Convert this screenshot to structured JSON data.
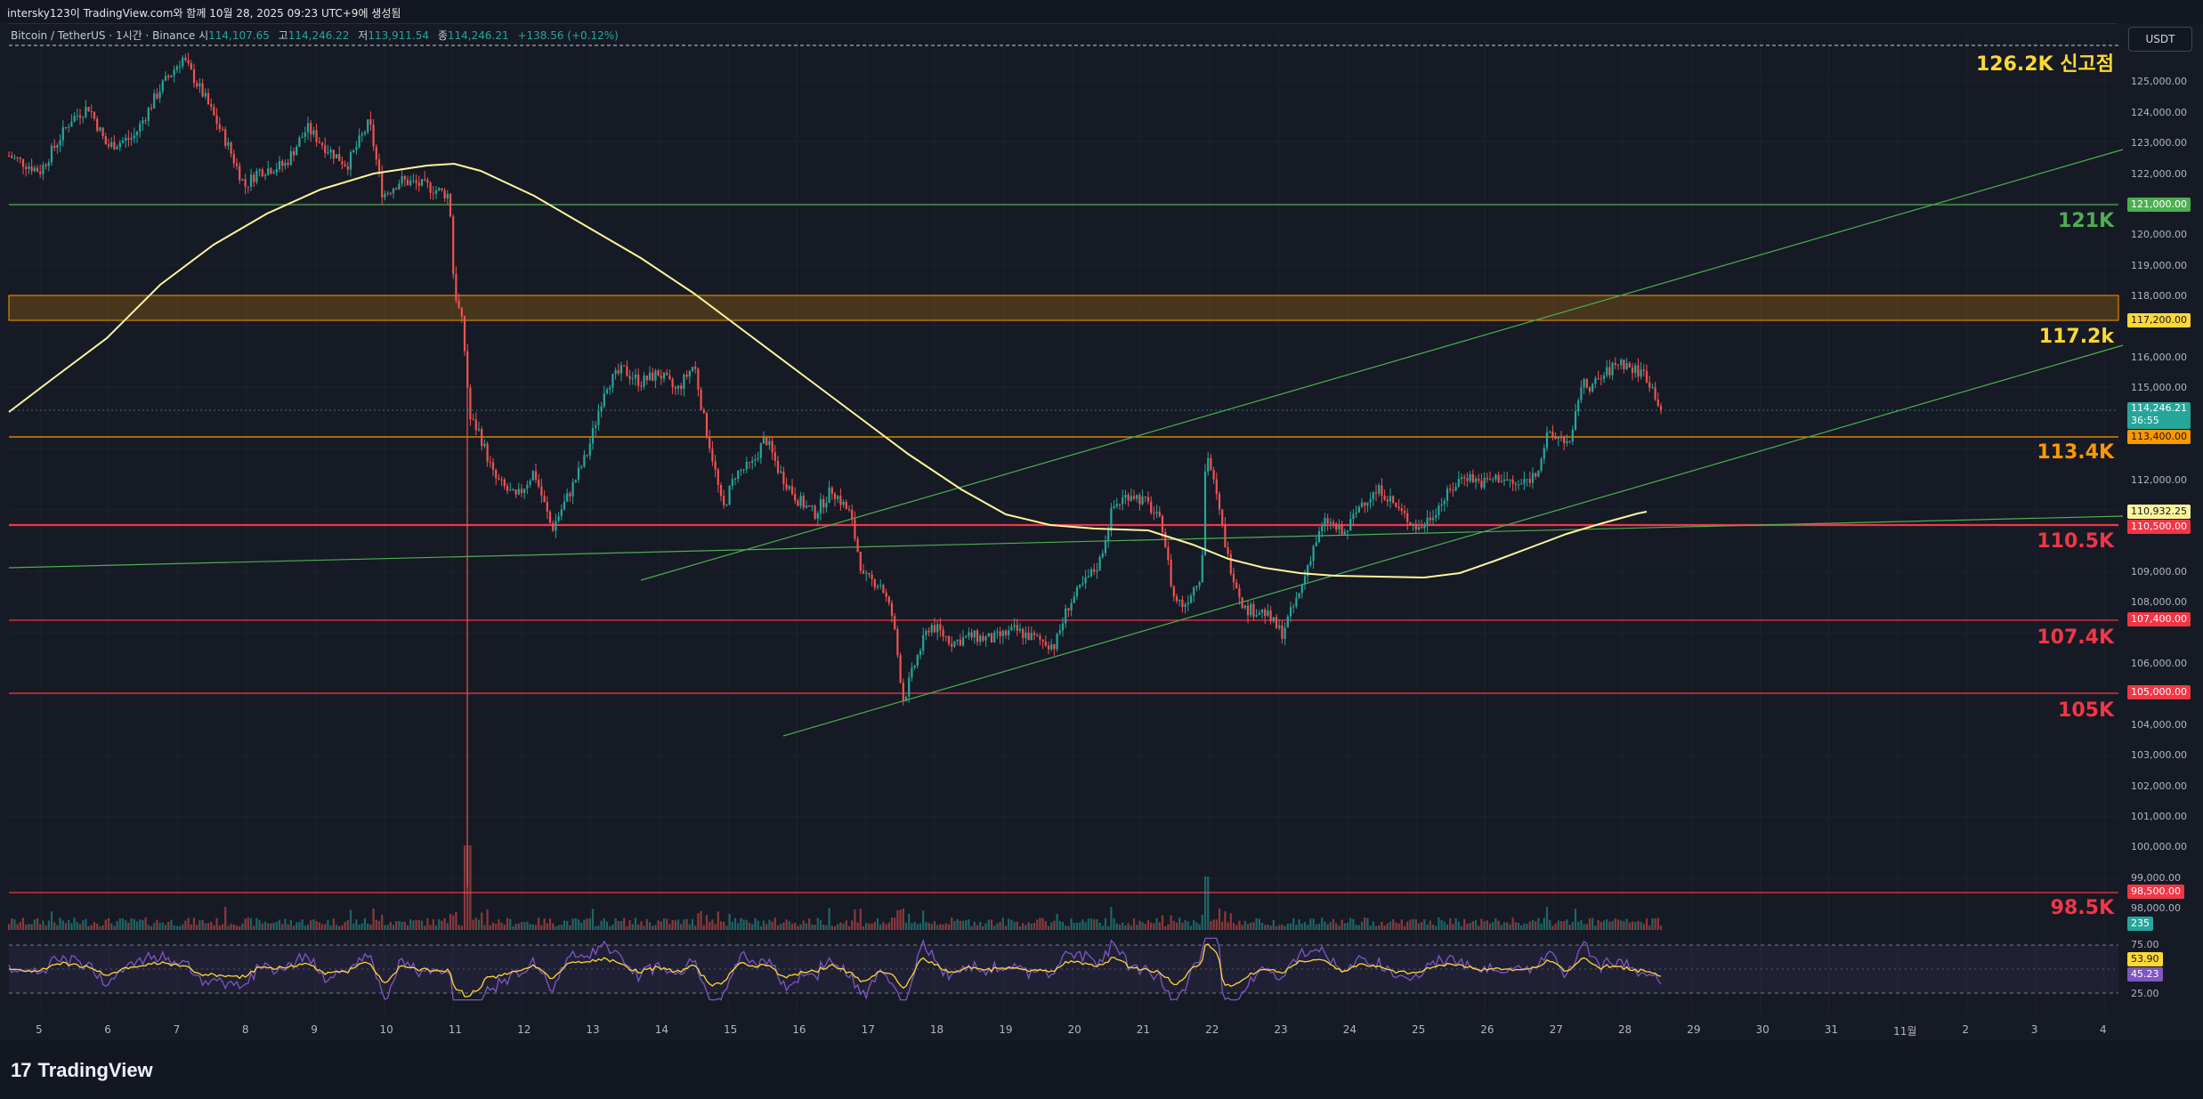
{
  "header": {
    "credit": "intersky123이 TradingView.com와 함께 10월 28, 2025 09:23 UTC+9에 생성됨"
  },
  "legend": {
    "symbol": "Bitcoin / TetherUS · 1시간 · Binance",
    "open_label": "시",
    "open": "114,107.65",
    "high_label": "고",
    "high": "114,246.22",
    "low_label": "저",
    "low": "113,911.54",
    "close_label": "종",
    "close": "114,246.21",
    "change": "+138.56 (+0.12%)"
  },
  "currency_button": "USDT",
  "annotations": {
    "ath": "126.2K 신고점",
    "l121": "121K",
    "l117": "117.2k",
    "l113": "113.4K",
    "l110": "110.5K",
    "l107": "107.4K",
    "l105": "105K",
    "l98": "98.5K"
  },
  "colors": {
    "up": "#26a69a",
    "down": "#ef5350",
    "ma": "#fff59d",
    "trend": "#4caf50",
    "res_orange": "#ff9800",
    "sup_red": "#f23645",
    "level_green": "#4caf50",
    "rsi": "#7e57c2"
  },
  "price_axis": {
    "ticks": [
      "125,000.00",
      "124,000.00",
      "123,000.00",
      "122,000.00",
      "120,000.00",
      "119,000.00",
      "118,000.00",
      "116,000.00",
      "115,000.00",
      "112,000.00",
      "111,000.00",
      "109,000.00",
      "108,000.00",
      "106,000.00",
      "105,000.00",
      "104,000.00",
      "103,000.00",
      "102,000.00",
      "101,000.00",
      "100,000.00",
      "99,000.00",
      "98,000.00"
    ],
    "badges": {
      "b121": "121,000.00",
      "b117": "117,200.00",
      "last": "114,246.21",
      "countdown": "36:55",
      "b113": "113,400.00",
      "ma": "110,932.25",
      "b110": "110,500.00",
      "b107": "107,400.00",
      "b105": "105,000.00",
      "b98": "98,500.00",
      "volume": "235",
      "rsi": "53.90",
      "rsi_ma": "45.23"
    },
    "rsi_ticks": [
      "75.00",
      "25.00"
    ]
  },
  "time_axis": [
    "5",
    "6",
    "7",
    "8",
    "9",
    "10",
    "11",
    "12",
    "13",
    "14",
    "15",
    "16",
    "17",
    "18",
    "19",
    "20",
    "21",
    "22",
    "23",
    "24",
    "25",
    "26",
    "27",
    "28",
    "29",
    "30",
    "31",
    "11월",
    "2",
    "3",
    "4"
  ],
  "branding": "TradingView"
}
